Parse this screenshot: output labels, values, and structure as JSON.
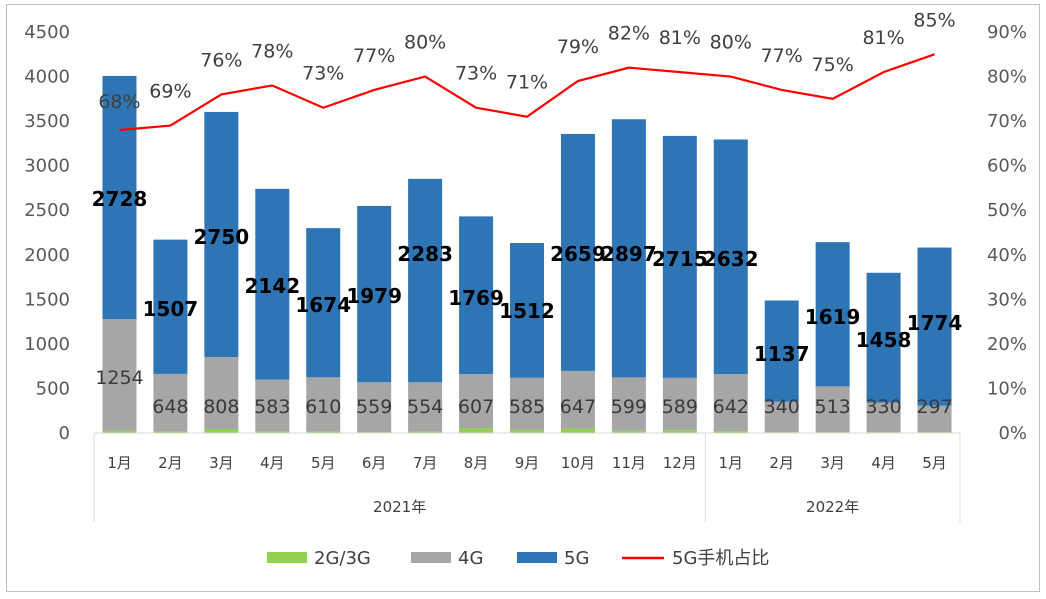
{
  "chart_data": {
    "type": "bar",
    "stacked": true,
    "months": [
      "1月",
      "2月",
      "3月",
      "4月",
      "5月",
      "6月",
      "7月",
      "8月",
      "9月",
      "10月",
      "11月",
      "12月",
      "1月",
      "2月",
      "3月",
      "4月",
      "5月"
    ],
    "years": [
      {
        "label": "2021年",
        "count": 12
      },
      {
        "label": "2022年",
        "count": 5
      }
    ],
    "series": [
      {
        "name": "2G/3G",
        "color": "#92d050",
        "values": [
          25,
          15,
          45,
          15,
          15,
          10,
          15,
          55,
          35,
          50,
          25,
          30,
          20,
          10,
          10,
          10,
          10
        ],
        "labels_shown": false
      },
      {
        "name": "4G",
        "color": "#a6a6a6",
        "values": [
          1254,
          648,
          808,
          583,
          610,
          559,
          554,
          607,
          585,
          647,
          599,
          589,
          642,
          340,
          513,
          330,
          297
        ],
        "labels_shown": true
      },
      {
        "name": "5G",
        "color": "#2e75b6",
        "values": [
          2728,
          1507,
          2750,
          2142,
          1674,
          1979,
          2283,
          1769,
          1512,
          2659,
          2897,
          2715,
          2632,
          1137,
          1619,
          1458,
          1774
        ],
        "labels_shown": true
      }
    ],
    "line": {
      "name": "5G手机占比",
      "color": "#ff0000",
      "values": [
        68,
        69,
        76,
        78,
        73,
        77,
        80,
        73,
        71,
        79,
        82,
        81,
        80,
        77,
        75,
        81,
        85
      ],
      "labels": [
        "68%",
        "69%",
        "76%",
        "78%",
        "73%",
        "77%",
        "80%",
        "73%",
        "71%",
        "79%",
        "82%",
        "81%",
        "80%",
        "77%",
        "75%",
        "81%",
        "85%"
      ]
    },
    "y_left": {
      "min": 0,
      "max": 4500,
      "step": 500,
      "ticks": [
        "0",
        "500",
        "1000",
        "1500",
        "2000",
        "2500",
        "3000",
        "3500",
        "4000",
        "4500"
      ]
    },
    "y_right": {
      "min": 0,
      "max": 90,
      "step": 10,
      "ticks": [
        "0%",
        "10%",
        "20%",
        "30%",
        "40%",
        "50%",
        "60%",
        "70%",
        "80%",
        "90%"
      ]
    },
    "legend_position": "bottom",
    "grid": false
  }
}
